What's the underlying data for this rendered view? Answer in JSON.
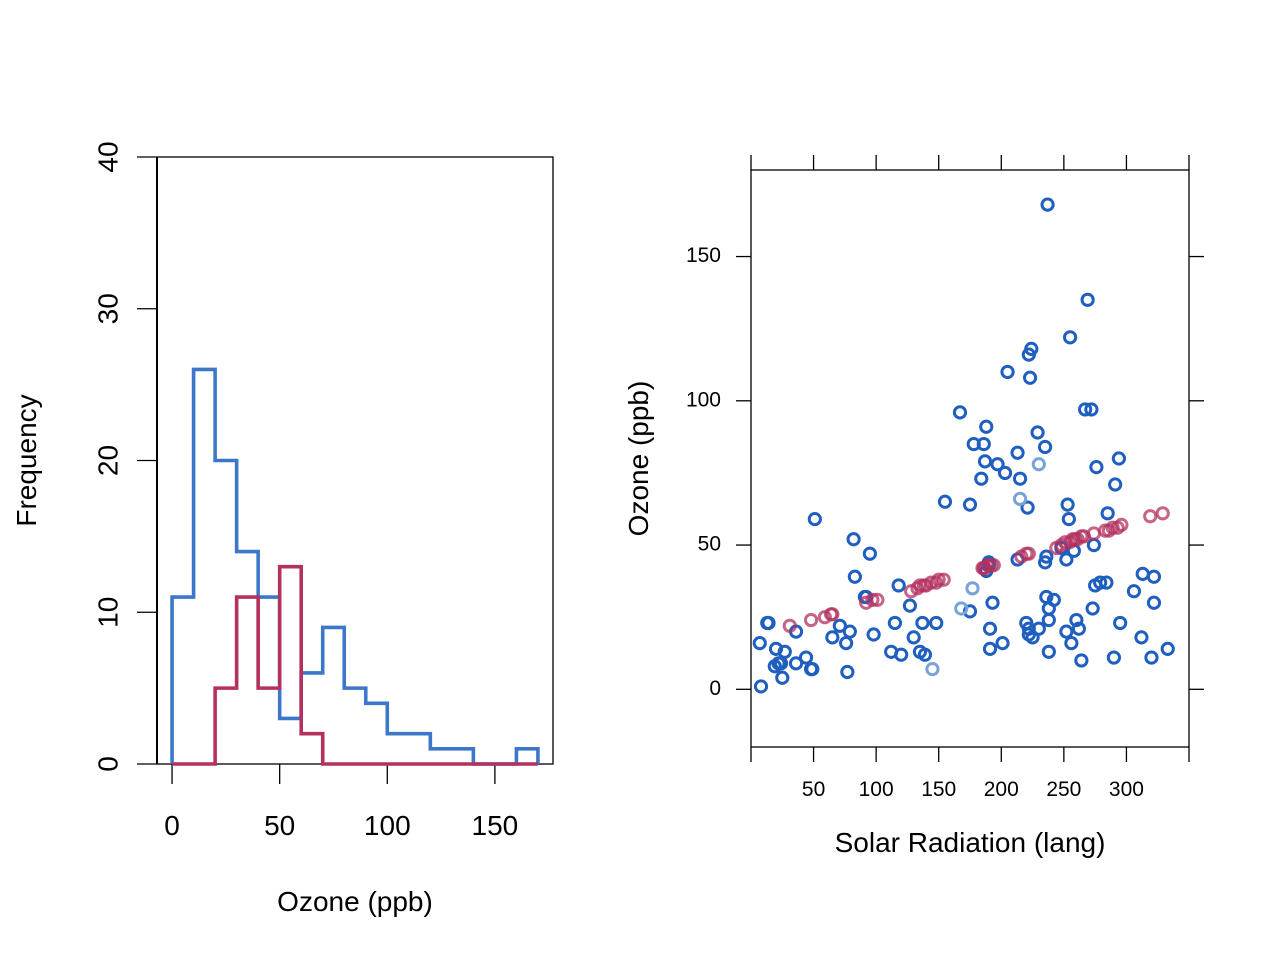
{
  "chart_data": [
    {
      "type": "histogram",
      "xlabel": "Ozone (ppb)",
      "ylabel": "Frequency",
      "xlim": [
        -7,
        177
      ],
      "ylim": [
        0,
        40
      ],
      "x_ticks": [
        0,
        50,
        100,
        150
      ],
      "y_ticks": [
        0,
        10,
        20,
        30,
        40
      ],
      "bin_edges": [
        0,
        10,
        20,
        30,
        40,
        50,
        60,
        70,
        80,
        90,
        100,
        110,
        120,
        130,
        140,
        150,
        160,
        170
      ],
      "series": [
        {
          "color": "#3b78c9",
          "counts": [
            11,
            26,
            20,
            14,
            11,
            3,
            6,
            9,
            5,
            4,
            2,
            2,
            1,
            1,
            0,
            0,
            1
          ]
        },
        {
          "color": "#b3305f",
          "counts": [
            0,
            0,
            5,
            11,
            5,
            13,
            2,
            0,
            0,
            0,
            0,
            0,
            0,
            0,
            0,
            0,
            0
          ]
        }
      ]
    },
    {
      "type": "scatter",
      "xlabel": "Solar Radiation (lang)",
      "ylabel": "Ozone (ppb)",
      "xlim": [
        0,
        350
      ],
      "ylim": [
        -20,
        180
      ],
      "x_ticks": [
        50,
        100,
        150,
        200,
        250,
        300
      ],
      "y_ticks": [
        0,
        50,
        100,
        150
      ],
      "series": [
        {
          "color": "#1f5fbf",
          "points": [
            [
              8,
              1
            ],
            [
              7,
              16
            ],
            [
              13,
              23
            ],
            [
              14,
              23
            ],
            [
              19,
              8
            ],
            [
              20,
              14
            ],
            [
              22,
              9
            ],
            [
              24,
              9
            ],
            [
              25,
              4
            ],
            [
              27,
              13
            ],
            [
              36,
              20
            ],
            [
              36,
              9
            ],
            [
              44,
              11
            ],
            [
              48,
              7
            ],
            [
              49,
              7
            ],
            [
              51,
              59
            ],
            [
              65,
              18
            ],
            [
              71,
              22
            ],
            [
              76,
              16
            ],
            [
              77,
              6
            ],
            [
              79,
              20
            ],
            [
              82,
              52
            ],
            [
              83,
              39
            ],
            [
              91,
              32
            ],
            [
              92,
              32
            ],
            [
              95,
              47
            ],
            [
              98,
              19
            ],
            [
              112,
              13
            ],
            [
              115,
              23
            ],
            [
              118,
              36
            ],
            [
              120,
              12
            ],
            [
              127,
              29
            ],
            [
              130,
              18
            ],
            [
              135,
              13
            ],
            [
              137,
              23
            ],
            [
              139,
              12
            ],
            [
              148,
              23
            ],
            [
              155,
              65
            ],
            [
              167,
              96
            ],
            [
              175,
              27
            ],
            [
              175,
              64
            ],
            [
              178,
              85
            ],
            [
              184,
              73
            ],
            [
              186,
              85
            ],
            [
              187,
              79
            ],
            [
              188,
              91
            ],
            [
              188,
              41
            ],
            [
              190,
              44
            ],
            [
              190,
              43
            ],
            [
              191,
              21
            ],
            [
              191,
              14
            ],
            [
              193,
              30
            ],
            [
              197,
              78
            ],
            [
              201,
              16
            ],
            [
              203,
              75
            ],
            [
              205,
              110
            ],
            [
              213,
              82
            ],
            [
              213,
              45
            ],
            [
              215,
              73
            ],
            [
              220,
              23
            ],
            [
              221,
              63
            ],
            [
              222,
              116
            ],
            [
              222,
              19
            ],
            [
              222,
              21
            ],
            [
              223,
              108
            ],
            [
              224,
              118
            ],
            [
              225,
              18
            ],
            [
              229,
              89
            ],
            [
              230,
              21
            ],
            [
              235,
              84
            ],
            [
              235,
              44
            ],
            [
              236,
              46
            ],
            [
              236,
              32
            ],
            [
              237,
              168
            ],
            [
              238,
              13
            ],
            [
              238,
              28
            ],
            [
              238,
              24
            ],
            [
              242,
              31
            ],
            [
              248,
              49
            ],
            [
              252,
              20
            ],
            [
              252,
              45
            ],
            [
              253,
              64
            ],
            [
              254,
              59
            ],
            [
              255,
              122
            ],
            [
              256,
              16
            ],
            [
              258,
              48
            ],
            [
              260,
              24
            ],
            [
              262,
              21
            ],
            [
              264,
              10
            ],
            [
              267,
              97
            ],
            [
              269,
              135
            ],
            [
              272,
              97
            ],
            [
              273,
              28
            ],
            [
              274,
              50
            ],
            [
              275,
              36
            ],
            [
              276,
              77
            ],
            [
              279,
              37
            ],
            [
              284,
              37
            ],
            [
              285,
              61
            ],
            [
              290,
              11
            ],
            [
              291,
              71
            ],
            [
              294,
              80
            ],
            [
              295,
              23
            ],
            [
              306,
              34
            ],
            [
              312,
              18
            ],
            [
              313,
              40
            ],
            [
              320,
              11
            ],
            [
              322,
              30
            ],
            [
              322,
              39
            ],
            [
              333,
              14
            ]
          ]
        },
        {
          "color": "#7aa2d8",
          "points": [
            [
              145,
              7
            ],
            [
              168,
              28
            ],
            [
              177,
              35
            ],
            [
              215,
              66
            ],
            [
              230,
              78
            ]
          ]
        },
        {
          "color": "#b3305f",
          "points": [
            [
              31,
              22
            ],
            [
              48,
              24
            ],
            [
              59,
              25
            ],
            [
              64,
              26
            ],
            [
              65,
              26
            ],
            [
              92,
              30
            ],
            [
              97,
              31
            ],
            [
              101,
              31
            ],
            [
              128,
              34
            ],
            [
              133,
              35
            ],
            [
              135,
              36
            ],
            [
              138,
              36
            ],
            [
              140,
              36
            ],
            [
              144,
              37
            ],
            [
              148,
              37
            ],
            [
              150,
              38
            ],
            [
              154,
              38
            ],
            [
              185,
              42
            ],
            [
              186,
              42
            ],
            [
              187,
              42
            ],
            [
              189,
              43
            ],
            [
              192,
              43
            ],
            [
              194,
              43
            ],
            [
              216,
              46
            ],
            [
              220,
              47
            ],
            [
              222,
              47
            ],
            [
              244,
              49
            ],
            [
              248,
              50
            ],
            [
              251,
              51
            ],
            [
              255,
              51
            ],
            [
              257,
              52
            ],
            [
              259,
              52
            ],
            [
              261,
              52
            ],
            [
              264,
              53
            ],
            [
              266,
              53
            ],
            [
              274,
              54
            ],
            [
              283,
              55
            ],
            [
              286,
              55
            ],
            [
              289,
              56
            ],
            [
              293,
              56
            ],
            [
              296,
              57
            ],
            [
              319,
              60
            ],
            [
              329,
              61
            ]
          ]
        }
      ]
    }
  ]
}
